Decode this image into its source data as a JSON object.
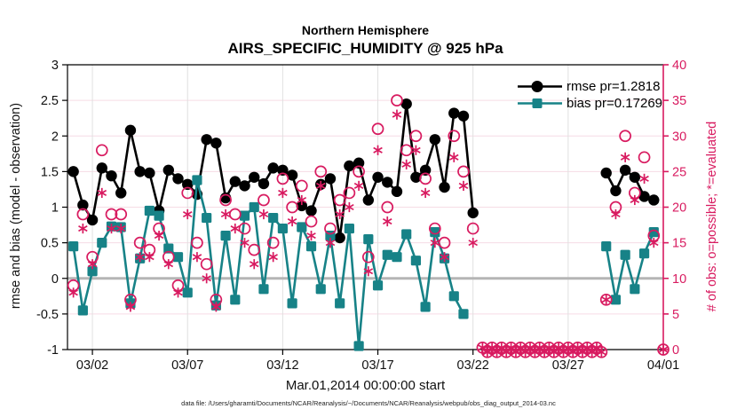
{
  "title": {
    "line1": "Northern Hemisphere",
    "line2": "AIRS_SPECIFIC_HUMIDITY @ 925 hPa"
  },
  "axes": {
    "left_label": "rmse and bias (model - observation)",
    "right_label": "# of obs: o=possible; *=evaluated",
    "x_label": "Mar.01,2014 00:00:00 start",
    "left_range": [
      -1,
      3
    ],
    "right_range": [
      0,
      40
    ],
    "x_range": [
      -0.31,
      31
    ],
    "left_ticks": [
      {
        "v": 3,
        "label": "3"
      },
      {
        "v": 2.5,
        "label": "2.5"
      },
      {
        "v": 2,
        "label": "2"
      },
      {
        "v": 1.5,
        "label": "1.5"
      },
      {
        "v": 1,
        "label": "1"
      },
      {
        "v": 0.5,
        "label": "0.5"
      },
      {
        "v": 0,
        "label": "0"
      },
      {
        "v": -0.5,
        "label": "-0.5"
      },
      {
        "v": -1,
        "label": "-1"
      }
    ],
    "right_ticks": [
      {
        "v": 40,
        "label": "40"
      },
      {
        "v": 35,
        "label": "35"
      },
      {
        "v": 30,
        "label": "30"
      },
      {
        "v": 25,
        "label": "25"
      },
      {
        "v": 20,
        "label": "20"
      },
      {
        "v": 15,
        "label": "15"
      },
      {
        "v": 10,
        "label": "10"
      },
      {
        "v": 5,
        "label": "5"
      },
      {
        "v": 0,
        "label": "0"
      }
    ],
    "x_ticks": [
      {
        "day": 1,
        "label": "03/02"
      },
      {
        "day": 6,
        "label": "03/07"
      },
      {
        "day": 11,
        "label": "03/12"
      },
      {
        "day": 16,
        "label": "03/17"
      },
      {
        "day": 21,
        "label": "03/22"
      },
      {
        "day": 26,
        "label": "03/27"
      },
      {
        "day": 31,
        "label": "04/01"
      }
    ]
  },
  "legend": {
    "items": [
      {
        "label": "rmse pr=1.2818",
        "marker": "filled-circle",
        "color": "#000000"
      },
      {
        "label": "bias pr=0.17269",
        "marker": "filled-square",
        "color": "#178287"
      }
    ]
  },
  "caption": "data file: /Users/gharamti/Documents/NCAR/Reanalysis/~/Documents/NCAR/Reanalysis/webpub/obs_diag_output_2014-03.nc",
  "colors": {
    "rmse": "#000000",
    "bias": "#178287",
    "obs": "#d81b60",
    "grid_h": "#f6dce5",
    "grid_v": "#e0e0e0",
    "zero_line": "#b5b5b5",
    "frame": "#000000",
    "text": "#111111"
  },
  "chart_data": {
    "type": "line",
    "x_unit": "days since Mar.01,2014 00:00:00",
    "x": [
      0,
      0.5,
      1,
      1.5,
      2,
      2.5,
      3,
      3.5,
      4,
      4.5,
      5,
      5.5,
      6,
      6.5,
      7,
      7.5,
      8,
      8.5,
      9,
      9.5,
      10,
      10.5,
      11,
      11.5,
      12,
      12.5,
      13,
      13.5,
      14,
      14.5,
      15,
      15.5,
      16,
      16.5,
      17,
      17.5,
      18,
      18.5,
      19,
      19.5,
      20,
      20.5,
      21,
      21.5,
      22,
      22.5,
      23,
      23.5,
      24,
      24.5,
      25,
      25.5,
      26,
      26.5,
      27,
      27.5,
      28,
      28.5,
      29,
      29.5,
      30,
      30.5,
      31
    ],
    "series": [
      {
        "name": "rmse",
        "axis": "left",
        "marker": "filled-circle",
        "values": [
          1.5,
          1.03,
          0.82,
          1.55,
          1.44,
          1.2,
          2.08,
          1.5,
          1.48,
          0.95,
          1.52,
          1.4,
          1.32,
          1.18,
          1.95,
          1.9,
          1.13,
          1.36,
          1.3,
          1.42,
          1.33,
          1.55,
          1.52,
          1.45,
          1.02,
          0.95,
          1.32,
          1.4,
          0.57,
          1.58,
          1.62,
          1.1,
          1.42,
          1.35,
          1.22,
          2.45,
          1.42,
          1.52,
          1.95,
          1.28,
          2.32,
          2.28,
          0.92,
          null,
          null,
          null,
          null,
          null,
          null,
          null,
          null,
          null,
          null,
          null,
          null,
          null,
          1.48,
          1.23,
          1.52,
          1.42,
          1.15,
          1.1,
          null
        ]
      },
      {
        "name": "bias",
        "axis": "left",
        "marker": "filled-square",
        "values": [
          0.45,
          -0.45,
          0.1,
          0.5,
          0.73,
          0.72,
          -0.35,
          0.28,
          0.95,
          0.88,
          0.42,
          0.3,
          -0.2,
          1.38,
          0.85,
          -0.38,
          0.6,
          -0.3,
          0.88,
          1.0,
          -0.15,
          0.85,
          0.7,
          -0.35,
          0.72,
          0.45,
          -0.15,
          0.6,
          -0.35,
          0.7,
          -0.95,
          0.55,
          -0.1,
          0.33,
          0.3,
          0.62,
          0.25,
          -0.4,
          0.65,
          0.28,
          -0.25,
          -0.5,
          null,
          null,
          null,
          null,
          null,
          null,
          null,
          null,
          null,
          null,
          null,
          null,
          null,
          null,
          0.45,
          -0.3,
          0.33,
          -0.15,
          0.35,
          0.65,
          null
        ]
      },
      {
        "name": "possible",
        "axis": "right",
        "marker": "open-circle",
        "values": [
          9,
          19,
          13,
          28,
          19,
          19,
          7,
          15,
          14,
          17,
          13,
          9,
          22,
          15,
          12,
          7,
          21,
          19,
          17,
          14,
          21,
          15,
          24,
          20,
          23,
          18,
          25,
          17,
          21,
          22,
          25,
          13,
          31,
          20,
          35,
          28,
          30,
          24,
          17,
          15,
          30,
          25,
          17,
          0,
          0,
          0,
          0,
          0,
          0,
          0,
          0,
          0,
          0,
          0,
          0,
          0,
          7,
          20,
          30,
          22,
          27,
          16,
          0
        ]
      },
      {
        "name": "evaluated",
        "axis": "right",
        "marker": "asterisk",
        "values": [
          8,
          17,
          12,
          22,
          17,
          17,
          6,
          13,
          13,
          16,
          12,
          8,
          19,
          13,
          10,
          6,
          19,
          17,
          15,
          12,
          19,
          13,
          22,
          18,
          21,
          16,
          23,
          15,
          19,
          20,
          23,
          11,
          28,
          18,
          33,
          26,
          28,
          22,
          15,
          13,
          27,
          23,
          15,
          0,
          0,
          0,
          0,
          0,
          0,
          0,
          0,
          0,
          0,
          0,
          0,
          0,
          7,
          19,
          27,
          21,
          24,
          15,
          0
        ]
      }
    ],
    "title": "Northern Hemisphere — AIRS_SPECIFIC_HUMIDITY @ 925 hPa",
    "xlabel": "Mar.01,2014 00:00:00 start",
    "ylabel_left": "rmse and bias (model - observation)",
    "ylabel_right": "# of obs: o=possible; *=evaluated",
    "ylim_left": [
      -1,
      3
    ],
    "ylim_right": [
      0,
      40
    ],
    "grid": true,
    "legend_position": "upper-right-inside"
  }
}
